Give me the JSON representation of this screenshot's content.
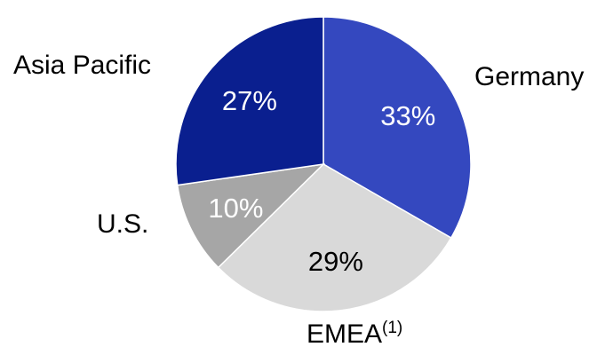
{
  "chart_data": {
    "type": "pie",
    "title": "",
    "slices": [
      {
        "label": "Germany",
        "value": 33,
        "display": "33%",
        "color": "#3448bf",
        "text_color": "#ffffff"
      },
      {
        "label": "EMEA",
        "label_sup": "(1)",
        "value": 29,
        "display": "29%",
        "color": "#d9d9d9",
        "text_color": "#000000"
      },
      {
        "label": "U.S.",
        "value": 10,
        "display": "10%",
        "color": "#a6a6a6",
        "text_color": "#ffffff"
      },
      {
        "label": "Asia Pacific",
        "value": 27,
        "display": "27%",
        "color": "#0a1f8f",
        "text_color": "#ffffff"
      }
    ],
    "start_angle_deg": 0,
    "direction": "clockwise",
    "legend": "none"
  }
}
